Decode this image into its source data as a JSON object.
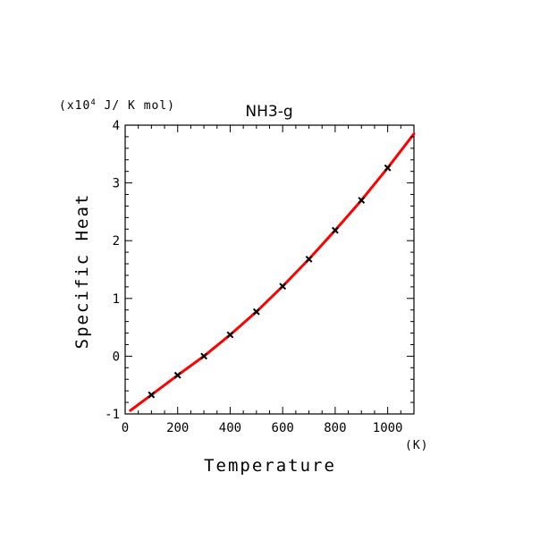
{
  "chart_data": {
    "type": "line",
    "title": "NH3-g",
    "xlabel": "Temperature",
    "ylabel": "Specific Heat",
    "x_unit": "(K)",
    "y_unit": {
      "prefix": "(x10",
      "exponent": "4",
      "suffix": " J/ K mol)"
    },
    "xlim": [
      0,
      1100
    ],
    "ylim": [
      -1,
      4
    ],
    "x_ticks": [
      0,
      200,
      400,
      600,
      800,
      1000
    ],
    "y_ticks": [
      -1,
      0,
      1,
      2,
      3,
      4
    ],
    "grid": false,
    "series": [
      {
        "style": "line",
        "color": "#ff0000",
        "x": [
          20,
          100,
          200,
          300,
          400,
          500,
          600,
          700,
          800,
          900,
          1000,
          1100
        ],
        "y": [
          -0.94,
          -0.67,
          -0.33,
          0.0,
          0.37,
          0.77,
          1.21,
          1.68,
          2.18,
          2.7,
          3.26,
          3.85
        ]
      },
      {
        "style": "markers",
        "marker": "x",
        "color": "#000000",
        "x": [
          100,
          200,
          300,
          400,
          500,
          600,
          700,
          800,
          900,
          1000
        ],
        "y": [
          -0.67,
          -0.33,
          0.0,
          0.37,
          0.77,
          1.21,
          1.68,
          2.18,
          2.7,
          3.26
        ]
      }
    ]
  }
}
